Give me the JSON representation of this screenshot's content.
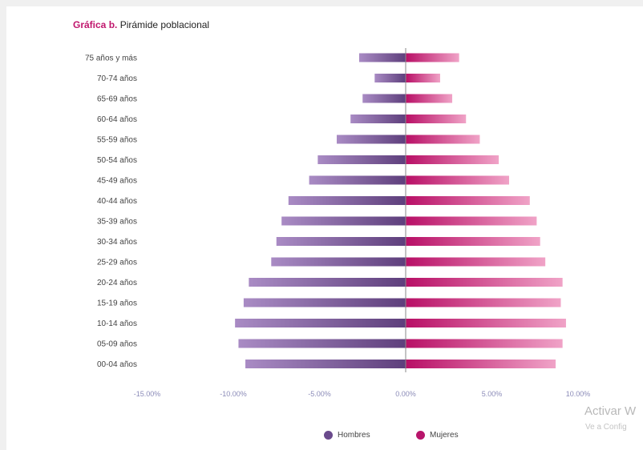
{
  "title_prefix": "Gráfica b.",
  "title_main": "Pirámide poblacional",
  "legend": {
    "men": "Hombres",
    "women": "Mujeres"
  },
  "watermark": {
    "line1": "Activar W",
    "line2": "Ve a Config"
  },
  "colors": {
    "men_light": "#a98bc4",
    "men_dark": "#5e3f7c",
    "women_dark": "#b80f66",
    "women_light": "#f0a3c7",
    "title_accent": "#c0166d",
    "tick": "#8b8bb8"
  },
  "chart_data": {
    "type": "bar",
    "orientation": "horizontal-pyramid",
    "title": "Gráfica b. Pirámide poblacional",
    "categories": [
      "75 años y más",
      "70-74 años",
      "65-69 años",
      "60-64 años",
      "55-59 años",
      "50-54 años",
      "45-49 años",
      "40-44 años",
      "35-39 años",
      "30-34 años",
      "25-29 años",
      "20-24 años",
      "15-19 años",
      "10-14 años",
      "05-09 años",
      "00-04 años"
    ],
    "series": [
      {
        "name": "Hombres",
        "values": [
          -2.7,
          -1.8,
          -2.5,
          -3.2,
          -4.0,
          -5.1,
          -5.6,
          -6.8,
          -7.2,
          -7.5,
          -7.8,
          -9.1,
          -9.4,
          -9.9,
          -9.7,
          -9.3
        ]
      },
      {
        "name": "Mujeres",
        "values": [
          3.1,
          2.0,
          2.7,
          3.5,
          4.3,
          5.4,
          6.0,
          7.2,
          7.6,
          7.8,
          8.1,
          9.1,
          9.0,
          9.3,
          9.1,
          8.7
        ]
      }
    ],
    "x_ticks": [
      "-15.00%",
      "-10.00%",
      "-5.00%",
      "0.00%",
      "5.00%",
      "10.00%"
    ],
    "x_tick_values": [
      -15,
      -10,
      -5,
      0,
      5,
      10
    ],
    "xlim": [
      -15,
      10
    ],
    "legend_position": "bottom"
  }
}
